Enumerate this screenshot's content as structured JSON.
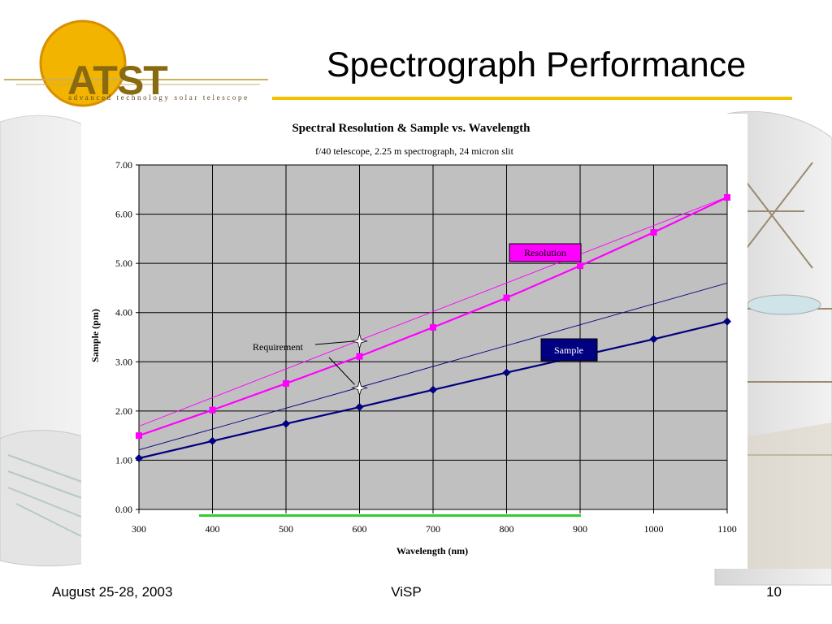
{
  "slide": {
    "title": "Spectrograph Performance",
    "logo_text": "ATST",
    "logo_subtitle": "advanced technology solar telescope",
    "footer_date": "August 25-28, 2003",
    "footer_center": "ViSP",
    "footer_page": "10",
    "accent_color": "#f2c200"
  },
  "chart_data": {
    "type": "line",
    "title": "Spectral Resolution & Sample vs. Wavelength",
    "subtitle": "f/40 telescope, 2.25 m spectrograph, 24 micron slit",
    "xlabel": "Wavelength (nm)",
    "ylabel": "Sample (pm)",
    "xlim": [
      300,
      1100
    ],
    "ylim": [
      0,
      7
    ],
    "x_ticks": [
      "300",
      "400",
      "500",
      "600",
      "700",
      "800",
      "900",
      "1000",
      "1100"
    ],
    "y_ticks": [
      "0.00",
      "1.00",
      "2.00",
      "3.00",
      "4.00",
      "5.00",
      "6.00",
      "7.00"
    ],
    "grid": true,
    "plot_background": "#c0c0c0",
    "x": [
      300,
      400,
      500,
      600,
      700,
      800,
      900,
      1000,
      1100
    ],
    "series": [
      {
        "name": "Resolution",
        "color": "#ff00ff",
        "values": [
          1.5,
          2.02,
          2.56,
          3.11,
          3.7,
          4.3,
          4.95,
          5.63,
          6.34
        ]
      },
      {
        "name": "Sample",
        "color": "#000080",
        "values": [
          1.04,
          1.39,
          1.74,
          2.08,
          2.43,
          2.78,
          3.12,
          3.46,
          3.82
        ]
      }
    ],
    "requirement_lines": [
      {
        "color": "#ff00ff",
        "x": [
          300,
          1100
        ],
        "y": [
          1.69,
          6.35
        ]
      },
      {
        "color": "#000080",
        "x": [
          300,
          1100
        ],
        "y": [
          1.21,
          4.6
        ]
      }
    ],
    "annotations": {
      "requirement_label": "Requirement",
      "requirement_points": [
        {
          "x": 600,
          "y": 3.42
        },
        {
          "x": 600,
          "y": 2.47
        }
      ]
    }
  }
}
